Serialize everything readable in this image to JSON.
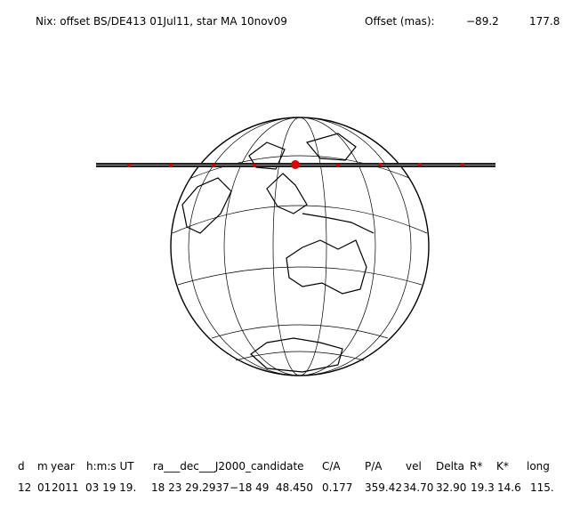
{
  "header": {
    "title": "Nix: offset BS/DE413 01Jul11, star MA 10nov09",
    "offset_label": "Offset (mas):",
    "offset_values": [
      "−89.2",
      "177.8"
    ]
  },
  "table": {
    "columns": [
      "d",
      "m",
      "year",
      "h:m:s UT",
      "ra___dec___J2000_candidate",
      "C/A",
      "P/A",
      "vel",
      "Delta",
      "R*",
      "K*",
      "long"
    ],
    "rows": [
      [
        "12",
        "01",
        "2011",
        "03 19 19.",
        "18 23 29.2937",
        "−18 49  48.450",
        "0.177",
        "359.42",
        "34.70",
        "32.90",
        "19.3",
        "14.6",
        "115."
      ]
    ]
  }
}
